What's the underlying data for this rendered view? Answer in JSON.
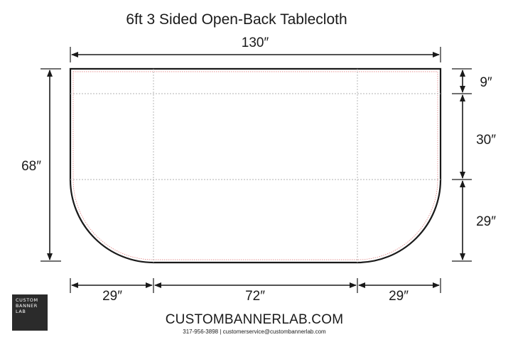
{
  "title": "6ft 3 Sided Open-Back Tablecloth",
  "dimensions": {
    "top_width": "130″",
    "left_height": "68″",
    "right_top": "9″",
    "right_middle": "30″",
    "right_bottom": "29″",
    "bottom_left": "29″",
    "bottom_center": "72″",
    "bottom_right": "29″"
  },
  "logo": {
    "line1": "CUSTOM",
    "line2": "BANNER",
    "line3": "LAB"
  },
  "footer": {
    "website": "CUSTOMBANNERLAB.COM",
    "contact": "317-956-3898 | customerservice@custombannerlab.com"
  },
  "colors": {
    "outline": "#1a1a1a",
    "guides": "#b0b0b0",
    "bleed": "#e07070",
    "logo_bg": "#2b2b2b"
  }
}
